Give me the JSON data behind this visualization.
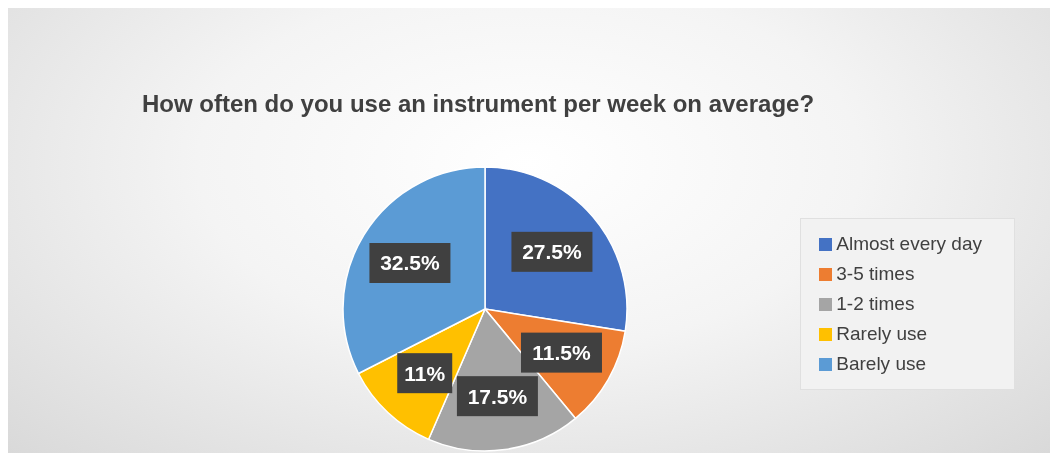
{
  "chart_data": {
    "type": "pie",
    "title": "How often do you use an instrument per week on average?",
    "categories": [
      "Almost every day",
      "3-5 times",
      "1-2 times",
      "Rarely use",
      "Barely use"
    ],
    "values": [
      27.5,
      11.5,
      17.5,
      11,
      32.5
    ],
    "value_labels": [
      "27.5%",
      "11.5%",
      "17.5%",
      "11%",
      "32.5%"
    ],
    "colors": [
      "#4472c4",
      "#ed7d31",
      "#a5a5a5",
      "#ffc000",
      "#5b9bd5"
    ],
    "legend": "right"
  }
}
